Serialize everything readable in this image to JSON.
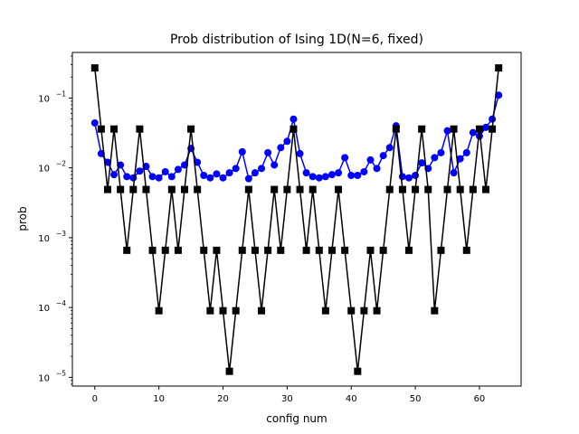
{
  "chart_data": {
    "type": "line",
    "title": "Prob distribution of Ising 1D(N=6, fixed)",
    "xlabel": "config num",
    "ylabel": "prob",
    "yscale": "log",
    "xlim": [
      -3.5,
      66.5
    ],
    "ylim": [
      7.5e-06,
      0.45
    ],
    "grid": false,
    "x_ticks": [
      0,
      10,
      20,
      30,
      40,
      50,
      60
    ],
    "y_ticks": [
      {
        "value": 1e-05,
        "base": "10",
        "exp": "−5"
      },
      {
        "value": 0.0001,
        "base": "10",
        "exp": "−4"
      },
      {
        "value": 0.001,
        "base": "10",
        "exp": "−3"
      },
      {
        "value": 0.01,
        "base": "10",
        "exp": "−2"
      },
      {
        "value": 0.1,
        "base": "10",
        "exp": "−1"
      }
    ],
    "series": [
      {
        "color": "#0000ff",
        "marker": "circle",
        "values": [
          0.044,
          0.016,
          0.012,
          0.008,
          0.011,
          0.0075,
          0.0072,
          0.009,
          0.0105,
          0.0075,
          0.0072,
          0.0088,
          0.0075,
          0.0095,
          0.011,
          0.019,
          0.012,
          0.0078,
          0.0072,
          0.0082,
          0.0072,
          0.0085,
          0.0098,
          0.017,
          0.007,
          0.0085,
          0.0098,
          0.0165,
          0.011,
          0.0195,
          0.024,
          0.05,
          0.016,
          0.0085,
          0.0075,
          0.0072,
          0.0075,
          0.008,
          0.0085,
          0.014,
          0.0078,
          0.0078,
          0.0088,
          0.013,
          0.0098,
          0.015,
          0.0195,
          0.04,
          0.0075,
          0.0072,
          0.0078,
          0.0118,
          0.0098,
          0.014,
          0.0165,
          0.034,
          0.0085,
          0.0135,
          0.0165,
          0.032,
          0.0285,
          0.038,
          0.05,
          0.11
        ]
      },
      {
        "color": "#000000",
        "marker": "square",
        "values": [
          0.27,
          0.036,
          0.0049,
          0.036,
          0.0049,
          0.00066,
          0.0049,
          0.036,
          0.0049,
          0.00066,
          9e-05,
          0.00066,
          0.0049,
          0.00066,
          0.0049,
          0.036,
          0.0049,
          0.00066,
          9e-05,
          0.00066,
          9e-05,
          1.22e-05,
          9e-05,
          0.00066,
          0.0049,
          0.00066,
          9e-05,
          0.00066,
          0.0049,
          0.00066,
          0.0049,
          0.036,
          0.0049,
          0.00066,
          0.0049,
          0.00066,
          9e-05,
          0.00066,
          0.0049,
          0.00066,
          9e-05,
          1.22e-05,
          9e-05,
          0.00066,
          9e-05,
          0.00066,
          0.0049,
          0.036,
          0.0049,
          0.00066,
          0.0049,
          0.036,
          0.0049,
          9e-05,
          0.00066,
          0.0049,
          0.036,
          0.0049,
          0.00066,
          0.0049,
          0.036,
          0.0049,
          0.036,
          0.27
        ]
      }
    ]
  }
}
